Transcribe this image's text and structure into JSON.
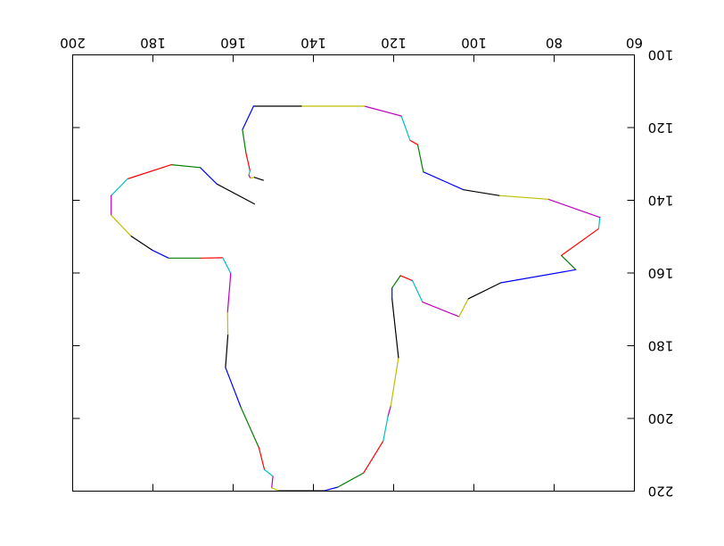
{
  "chart_data": {
    "type": "line",
    "title": "",
    "xlabel": "",
    "ylabel": "",
    "grid": false,
    "legend": "none",
    "x_axis": {
      "min": 200,
      "max": 60,
      "ticks": [
        200,
        180,
        160,
        140,
        120,
        100,
        80,
        60
      ],
      "tick_labels": [
        "200",
        "180",
        "160",
        "140",
        "120",
        "100",
        "80",
        "60"
      ],
      "label_position": "top",
      "inverted": true
    },
    "y_axis": {
      "min": 100,
      "max": 220,
      "ticks": [
        100,
        120,
        140,
        160,
        180,
        200,
        220
      ],
      "tick_labels": [
        "100",
        "120",
        "140",
        "160",
        "180",
        "200",
        "220"
      ],
      "label_position": "right",
      "inverted": true
    },
    "segment_colors": [
      "#000000",
      "#0000ff",
      "#008000",
      "#ff0000",
      "#00bfbf",
      "#bf00bf",
      "#bfbf00"
    ],
    "points": [
      [
        154.7,
        141.0
      ],
      [
        164.1,
        135.5
      ],
      [
        168.2,
        131.0
      ],
      [
        175.4,
        130.2
      ],
      [
        186.3,
        134.1
      ],
      [
        190.4,
        138.7
      ],
      [
        190.4,
        144.1
      ],
      [
        185.4,
        149.9
      ],
      [
        180.2,
        153.7
      ],
      [
        176.1,
        155.9
      ],
      [
        168.1,
        155.9
      ],
      [
        162.6,
        155.8
      ],
      [
        160.6,
        160.1
      ],
      [
        161.4,
        170.9
      ],
      [
        161.3,
        177.1
      ],
      [
        161.9,
        186.0
      ],
      [
        158.1,
        196.9
      ],
      [
        153.6,
        208.0
      ],
      [
        152.2,
        214.1
      ],
      [
        150.1,
        215.9
      ],
      [
        150.4,
        219.1
      ],
      [
        148.6,
        219.9
      ],
      [
        137.3,
        219.9
      ],
      [
        133.9,
        218.9
      ],
      [
        127.5,
        215.0
      ],
      [
        122.6,
        206.2
      ],
      [
        121.4,
        199.3
      ],
      [
        120.7,
        196.6
      ],
      [
        118.8,
        183.3
      ],
      [
        120.4,
        167.1
      ],
      [
        120.4,
        164.1
      ],
      [
        118.3,
        160.7
      ],
      [
        115.3,
        162.1
      ],
      [
        112.8,
        168.0
      ],
      [
        103.7,
        172.0
      ],
      [
        101.4,
        167.1
      ],
      [
        93.3,
        162.7
      ],
      [
        74.6,
        159.1
      ],
      [
        78.2,
        155.2
      ],
      [
        68.9,
        147.8
      ],
      [
        68.6,
        144.7
      ],
      [
        81.5,
        139.7
      ],
      [
        93.7,
        138.7
      ],
      [
        102.6,
        137.1
      ],
      [
        112.6,
        132.2
      ],
      [
        114.0,
        124.7
      ],
      [
        115.9,
        123.5
      ],
      [
        118.1,
        116.8
      ],
      [
        127.3,
        114.1
      ],
      [
        143.0,
        114.1
      ],
      [
        154.9,
        114.1
      ],
      [
        157.7,
        120.6
      ],
      [
        156.8,
        127.0
      ],
      [
        155.8,
        131.9
      ],
      [
        156.1,
        133.1
      ],
      [
        155.7,
        133.9
      ],
      [
        154.7,
        133.7
      ],
      [
        152.5,
        134.5
      ]
    ]
  }
}
